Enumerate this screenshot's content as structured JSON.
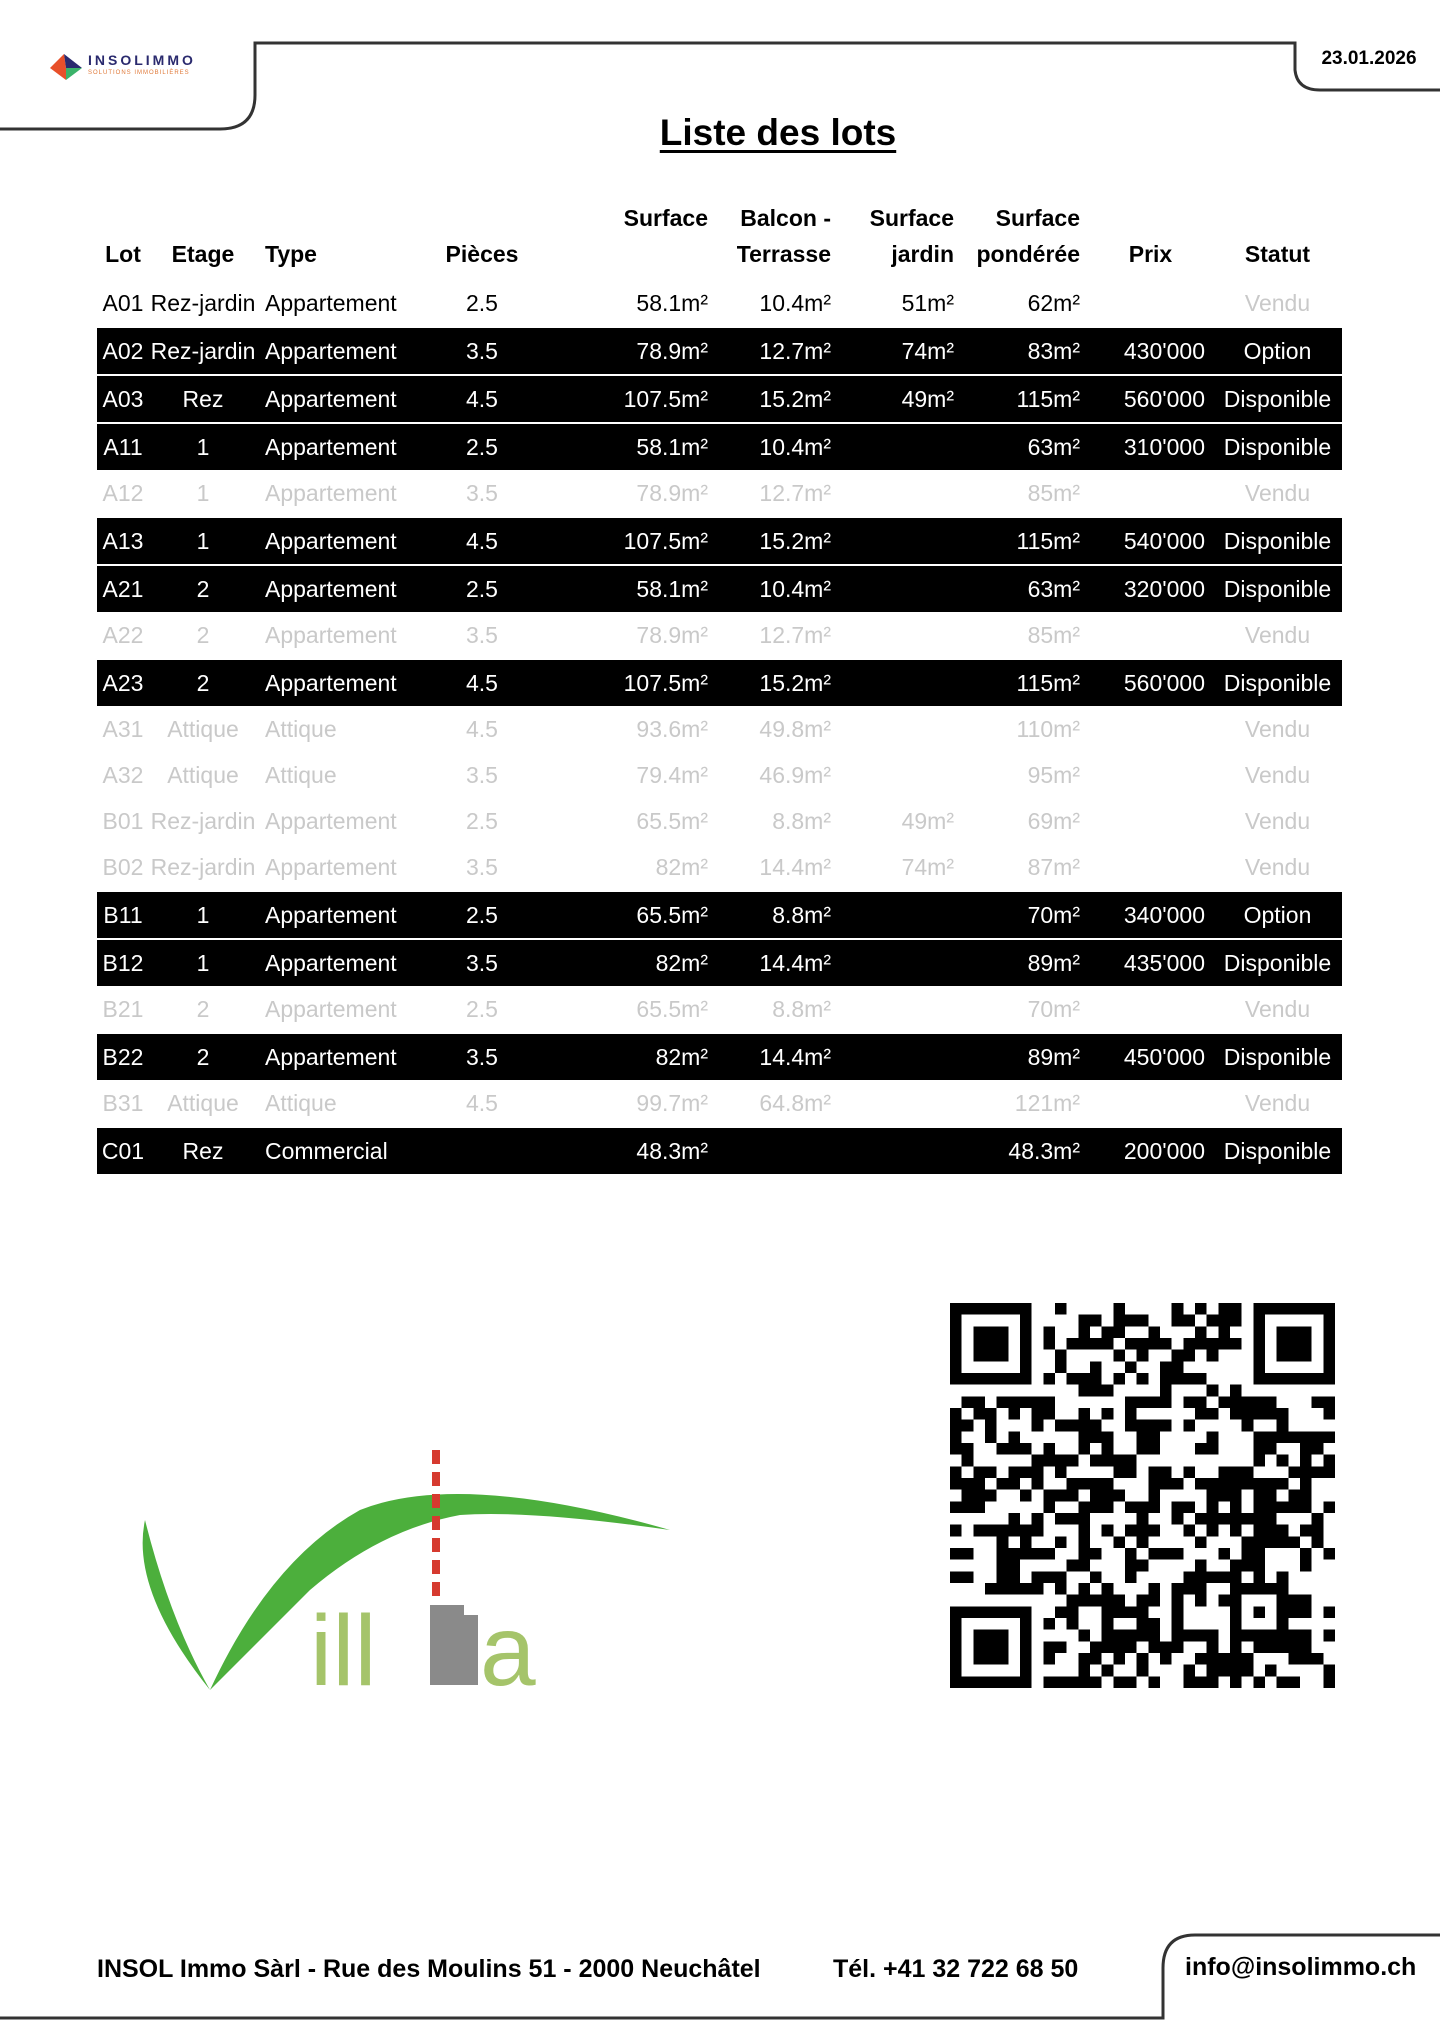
{
  "header": {
    "logo_text": "INSOLIMMO",
    "logo_subtext": "SOLUTIONS IMMOBILIÈRES",
    "date": "23.01.2026",
    "title": "Liste des  lots"
  },
  "table": {
    "headers": {
      "lot": "Lot",
      "etage": "Etage",
      "type": "Type",
      "pieces": "Pièces",
      "surface": "Surface",
      "balcon_1": "Balcon -",
      "balcon_2": "Terrasse",
      "jardin_1": "Surface",
      "jardin_2": "jardin",
      "ponderee_1": "Surface",
      "ponderee_2": "pondérée",
      "prix": "Prix",
      "statut": "Statut"
    },
    "rows": [
      {
        "lot": "A01",
        "etage": "Rez-jardin",
        "type": "Appartement",
        "pieces": "2.5",
        "surface": "58.1m²",
        "balcon": "10.4m²",
        "jardin": "51m²",
        "ponderee": "62m²",
        "prix": "",
        "statut": "Vendu",
        "style": "plain"
      },
      {
        "lot": "A02",
        "etage": "Rez-jardin",
        "type": "Appartement",
        "pieces": "3.5",
        "surface": "78.9m²",
        "balcon": "12.7m²",
        "jardin": "74m²",
        "ponderee": "83m²",
        "prix": "430'000",
        "statut": "Option",
        "style": "dark"
      },
      {
        "lot": "A03",
        "etage": "Rez",
        "type": "Appartement",
        "pieces": "4.5",
        "surface": "107.5m²",
        "balcon": "15.2m²",
        "jardin": "49m²",
        "ponderee": "115m²",
        "prix": "560'000",
        "statut": "Disponible",
        "style": "dark"
      },
      {
        "lot": "A11",
        "etage": "1",
        "type": "Appartement",
        "pieces": "2.5",
        "surface": "58.1m²",
        "balcon": "10.4m²",
        "jardin": "",
        "ponderee": "63m²",
        "prix": "310'000",
        "statut": "Disponible",
        "style": "dark"
      },
      {
        "lot": "A12",
        "etage": "1",
        "type": "Appartement",
        "pieces": "3.5",
        "surface": "78.9m²",
        "balcon": "12.7m²",
        "jardin": "",
        "ponderee": "85m²",
        "prix": "",
        "statut": "Vendu",
        "style": "sold"
      },
      {
        "lot": "A13",
        "etage": "1",
        "type": "Appartement",
        "pieces": "4.5",
        "surface": "107.5m²",
        "balcon": "15.2m²",
        "jardin": "",
        "ponderee": "115m²",
        "prix": "540'000",
        "statut": "Disponible",
        "style": "dark"
      },
      {
        "lot": "A21",
        "etage": "2",
        "type": "Appartement",
        "pieces": "2.5",
        "surface": "58.1m²",
        "balcon": "10.4m²",
        "jardin": "",
        "ponderee": "63m²",
        "prix": "320'000",
        "statut": "Disponible",
        "style": "dark"
      },
      {
        "lot": "A22",
        "etage": "2",
        "type": "Appartement",
        "pieces": "3.5",
        "surface": "78.9m²",
        "balcon": "12.7m²",
        "jardin": "",
        "ponderee": "85m²",
        "prix": "",
        "statut": "Vendu",
        "style": "sold"
      },
      {
        "lot": "A23",
        "etage": "2",
        "type": "Appartement",
        "pieces": "4.5",
        "surface": "107.5m²",
        "balcon": "15.2m²",
        "jardin": "",
        "ponderee": "115m²",
        "prix": "560'000",
        "statut": "Disponible",
        "style": "dark"
      },
      {
        "lot": "A31",
        "etage": "Attique",
        "type": "Attique",
        "pieces": "4.5",
        "surface": "93.6m²",
        "balcon": "49.8m²",
        "jardin": "",
        "ponderee": "110m²",
        "prix": "",
        "statut": "Vendu",
        "style": "sold"
      },
      {
        "lot": "A32",
        "etage": "Attique",
        "type": "Attique",
        "pieces": "3.5",
        "surface": "79.4m²",
        "balcon": "46.9m²",
        "jardin": "",
        "ponderee": "95m²",
        "prix": "",
        "statut": "Vendu",
        "style": "sold"
      },
      {
        "lot": "B01",
        "etage": "Rez-jardin",
        "type": "Appartement",
        "pieces": "2.5",
        "surface": "65.5m²",
        "balcon": "8.8m²",
        "jardin": "49m²",
        "ponderee": "69m²",
        "prix": "",
        "statut": "Vendu",
        "style": "sold"
      },
      {
        "lot": "B02",
        "etage": "Rez-jardin",
        "type": "Appartement",
        "pieces": "3.5",
        "surface": "82m²",
        "balcon": "14.4m²",
        "jardin": "74m²",
        "ponderee": "87m²",
        "prix": "",
        "statut": "Vendu",
        "style": "sold"
      },
      {
        "lot": "B11",
        "etage": "1",
        "type": "Appartement",
        "pieces": "2.5",
        "surface": "65.5m²",
        "balcon": "8.8m²",
        "jardin": "",
        "ponderee": "70m²",
        "prix": "340'000",
        "statut": "Option",
        "style": "dark"
      },
      {
        "lot": "B12",
        "etage": "1",
        "type": "Appartement",
        "pieces": "3.5",
        "surface": "82m²",
        "balcon": "14.4m²",
        "jardin": "",
        "ponderee": "89m²",
        "prix": "435'000",
        "statut": "Disponible",
        "style": "dark"
      },
      {
        "lot": "B21",
        "etage": "2",
        "type": "Appartement",
        "pieces": "2.5",
        "surface": "65.5m²",
        "balcon": "8.8m²",
        "jardin": "",
        "ponderee": "70m²",
        "prix": "",
        "statut": "Vendu",
        "style": "sold"
      },
      {
        "lot": "B22",
        "etage": "2",
        "type": "Appartement",
        "pieces": "3.5",
        "surface": "82m²",
        "balcon": "14.4m²",
        "jardin": "",
        "ponderee": "89m²",
        "prix": "450'000",
        "statut": "Disponible",
        "style": "dark"
      },
      {
        "lot": "B31",
        "etage": "Attique",
        "type": "Attique",
        "pieces": "4.5",
        "surface": "99.7m²",
        "balcon": "64.8m²",
        "jardin": "",
        "ponderee": "121m²",
        "prix": "",
        "statut": "Vendu",
        "style": "sold"
      },
      {
        "lot": "C01",
        "etage": "Rez",
        "type": "Commercial",
        "pieces": "",
        "surface": "48.3m²",
        "balcon": "",
        "jardin": "",
        "ponderee": "48.3m²",
        "prix": "200'000",
        "statut": "Disponible",
        "style": "dark"
      }
    ]
  },
  "villa_logo": {
    "text": "Villa"
  },
  "qr_code": {
    "icon": "qr-code"
  },
  "footer": {
    "address": "INSOL Immo Sàrl - Rue des Moulins 51 -  2000 Neuchâtel",
    "phone": "Tél. +41 32 722 68 50",
    "email": "info@insolimmo.ch"
  },
  "colors": {
    "logo_green": "#4caf3c",
    "logo_light_green": "#a5c46a",
    "tower_red": "#d63a2f",
    "building_gray": "#8a8a8a",
    "row_dark": "#000000",
    "sold_text": "#c9c9c9"
  }
}
